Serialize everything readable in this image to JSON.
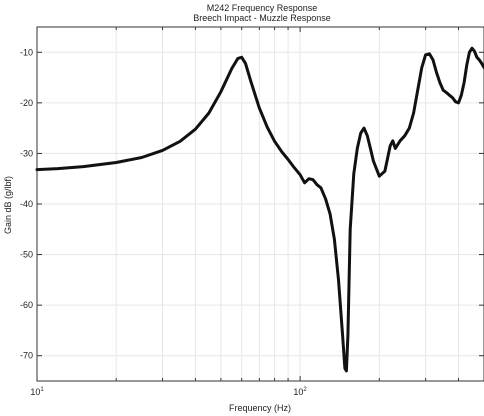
{
  "chart_data": {
    "type": "line",
    "title": "M242 Frequency Response",
    "subtitle": "Breech Impact - Muzzle Response",
    "xlabel": "Frequency (Hz)",
    "ylabel": "Gain dB (g/lbf)",
    "xscale": "log",
    "xlim": [
      10,
      500
    ],
    "ylim": [
      -75,
      -5
    ],
    "xticks": [
      {
        "value": 10,
        "base": "10",
        "exp": "1"
      },
      {
        "value": 100,
        "base": "10",
        "exp": "2"
      }
    ],
    "yticks": [
      -10,
      -20,
      -30,
      -40,
      -50,
      -60,
      -70
    ],
    "grid": true,
    "line_color": "#111111",
    "series": [
      {
        "x": [
          10,
          12,
          15,
          20,
          25,
          30,
          35,
          40,
          45,
          50,
          55,
          58,
          60,
          62,
          65,
          70,
          75,
          80,
          85,
          90,
          95,
          100,
          104,
          108,
          112,
          116,
          120,
          125,
          130,
          135,
          140,
          145,
          148,
          150,
          152,
          155,
          160,
          165,
          170,
          175,
          180,
          185,
          190,
          200,
          210,
          220,
          225,
          230,
          240,
          250,
          260,
          270,
          280,
          290,
          300,
          310,
          320,
          330,
          340,
          350,
          360,
          370,
          380,
          390,
          400,
          410,
          420,
          430,
          440,
          450,
          460,
          470,
          480,
          490,
          500
        ],
        "y": [
          -33.2,
          -33.0,
          -32.6,
          -31.8,
          -30.8,
          -29.4,
          -27.6,
          -25.2,
          -22.0,
          -17.8,
          -13.2,
          -11.2,
          -11.0,
          -12.2,
          -15.8,
          -21.0,
          -24.8,
          -27.6,
          -29.6,
          -31.2,
          -32.8,
          -34.2,
          -35.8,
          -35.0,
          -35.2,
          -36.2,
          -36.8,
          -39.0,
          -42.0,
          -47.0,
          -55.0,
          -66.0,
          -72.5,
          -73.0,
          -66.0,
          -45.0,
          -34.0,
          -29.0,
          -26.0,
          -25.0,
          -26.5,
          -29.0,
          -31.5,
          -34.5,
          -33.5,
          -28.5,
          -27.5,
          -29.0,
          -27.5,
          -26.5,
          -25.0,
          -22.0,
          -17.5,
          -13.0,
          -10.5,
          -10.3,
          -11.5,
          -14.0,
          -16.0,
          -17.5,
          -18.0,
          -18.5,
          -19.0,
          -19.8,
          -20.0,
          -18.5,
          -16.0,
          -12.5,
          -10.0,
          -9.2,
          -9.8,
          -11.0,
          -11.5,
          -12.2,
          -13.0
        ]
      }
    ]
  }
}
